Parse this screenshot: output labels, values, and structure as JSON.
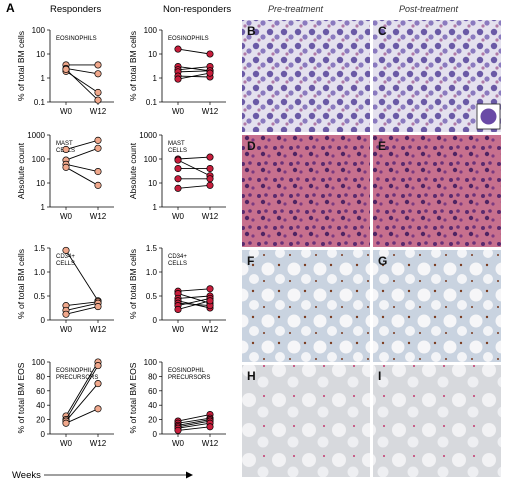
{
  "labels": {
    "panel_a": "A",
    "responders": "Responders",
    "nonresponders": "Non-responders",
    "pretreatment": "Pre-treatment",
    "posttreatment": "Post-treatment",
    "weeks": "Weeks"
  },
  "colors": {
    "responder_fill": "#f0a88c",
    "nonresponder_fill": "#c81e3c",
    "line": "#000000"
  },
  "photo_panels": [
    "B",
    "C",
    "D",
    "E",
    "F",
    "G",
    "H",
    "I"
  ],
  "chart_data": [
    {
      "type": "line",
      "id": "eos-resp",
      "group": "Responders",
      "panel_label": "EOSINOPHILS",
      "ylabel": "% of total BM cells",
      "yscale": "log",
      "ylim": [
        0.1,
        100
      ],
      "yticks": [
        "0.1",
        "1",
        "10",
        "100"
      ],
      "categories": [
        "W0",
        "W12"
      ],
      "series": [
        {
          "values": [
            3.5,
            3.5
          ]
        },
        {
          "values": [
            2.5,
            1.5
          ]
        },
        {
          "values": [
            1.9,
            0.25
          ]
        },
        {
          "values": [
            2.3,
            0.12
          ]
        }
      ]
    },
    {
      "type": "line",
      "id": "eos-nonresp",
      "group": "Non-responders",
      "panel_label": "EOSINOPHILS",
      "ylabel": "% of total BM cells",
      "yscale": "log",
      "ylim": [
        0.1,
        100
      ],
      "yticks": [
        "0.1",
        "1",
        "10",
        "100"
      ],
      "categories": [
        "W0",
        "W12"
      ],
      "series": [
        {
          "values": [
            16,
            10
          ]
        },
        {
          "values": [
            3,
            2
          ]
        },
        {
          "values": [
            2.2,
            3
          ]
        },
        {
          "values": [
            1.8,
            2
          ]
        },
        {
          "values": [
            1.2,
            1.1
          ]
        },
        {
          "values": [
            0.9,
            1.6
          ]
        }
      ]
    },
    {
      "type": "line",
      "id": "mast-resp",
      "group": "Responders",
      "panel_label": "MAST CELLS",
      "ylabel": "Absolute count",
      "yscale": "log",
      "ylim": [
        1,
        1000
      ],
      "yticks": [
        "1",
        "10",
        "100",
        "1000"
      ],
      "categories": [
        "W0",
        "W12"
      ],
      "series": [
        {
          "values": [
            250,
            600
          ]
        },
        {
          "values": [
            90,
            280
          ]
        },
        {
          "values": [
            60,
            30
          ]
        },
        {
          "values": [
            45,
            8
          ]
        }
      ]
    },
    {
      "type": "line",
      "id": "mast-nonresp",
      "group": "Non-responders",
      "panel_label": "MAST CELLS",
      "ylabel": "Absolute count",
      "yscale": "log",
      "ylim": [
        1,
        1000
      ],
      "yticks": [
        "1",
        "10",
        "100",
        "1000"
      ],
      "categories": [
        "W0",
        "W12"
      ],
      "series": [
        {
          "values": [
            100,
            120
          ]
        },
        {
          "values": [
            90,
            20
          ]
        },
        {
          "values": [
            40,
            40
          ]
        },
        {
          "values": [
            15,
            15
          ]
        },
        {
          "values": [
            6,
            8
          ]
        }
      ]
    },
    {
      "type": "line",
      "id": "cd34-resp",
      "group": "Responders",
      "panel_label": "CD34+ CELLS",
      "ylabel": "% of total BM cells",
      "yscale": "linear",
      "ylim": [
        0,
        1.5
      ],
      "yticks": [
        "0",
        "0.5",
        "1.0",
        "1.5"
      ],
      "categories": [
        "W0",
        "W12"
      ],
      "series": [
        {
          "values": [
            1.45,
            0.4
          ]
        },
        {
          "values": [
            0.3,
            0.38
          ]
        },
        {
          "values": [
            0.2,
            0.35
          ]
        },
        {
          "values": [
            0.12,
            0.28
          ]
        }
      ]
    },
    {
      "type": "line",
      "id": "cd34-nonresp",
      "group": "Non-responders",
      "panel_label": "CD34+ CELLS",
      "ylabel": "% of total BM cells",
      "yscale": "linear",
      "ylim": [
        0,
        1.5
      ],
      "yticks": [
        "0",
        "0.5",
        "1.0",
        "1.5"
      ],
      "categories": [
        "W0",
        "W12"
      ],
      "series": [
        {
          "values": [
            0.6,
            0.65
          ]
        },
        {
          "values": [
            0.55,
            0.35
          ]
        },
        {
          "values": [
            0.45,
            0.5
          ]
        },
        {
          "values": [
            0.4,
            0.25
          ]
        },
        {
          "values": [
            0.35,
            0.3
          ]
        },
        {
          "values": [
            0.3,
            0.45
          ]
        },
        {
          "values": [
            0.22,
            0.4
          ]
        }
      ]
    },
    {
      "type": "line",
      "id": "eosprec-resp",
      "group": "Responders",
      "panel_label": "EOSINOPHIL PRECURSORS",
      "ylabel": "% of total BM EOS",
      "yscale": "linear",
      "ylim": [
        0,
        100
      ],
      "yticks": [
        "0",
        "20",
        "40",
        "60",
        "80",
        "100"
      ],
      "categories": [
        "W0",
        "W12"
      ],
      "series": [
        {
          "values": [
            25,
            100
          ]
        },
        {
          "values": [
            20,
            95
          ]
        },
        {
          "values": [
            18,
            70
          ]
        },
        {
          "values": [
            15,
            35
          ]
        }
      ]
    },
    {
      "type": "line",
      "id": "eosprec-nonresp",
      "group": "Non-responders",
      "panel_label": "EOSINOPHIL PRECURSORS",
      "ylabel": "% of total BM EOS",
      "yscale": "linear",
      "ylim": [
        0,
        100
      ],
      "yticks": [
        "0",
        "20",
        "40",
        "60",
        "80",
        "100"
      ],
      "categories": [
        "W0",
        "W12"
      ],
      "series": [
        {
          "values": [
            18,
            27
          ]
        },
        {
          "values": [
            15,
            22
          ]
        },
        {
          "values": [
            12,
            20
          ]
        },
        {
          "values": [
            10,
            18
          ]
        },
        {
          "values": [
            8,
            15
          ]
        },
        {
          "values": [
            5,
            10
          ]
        }
      ]
    }
  ]
}
